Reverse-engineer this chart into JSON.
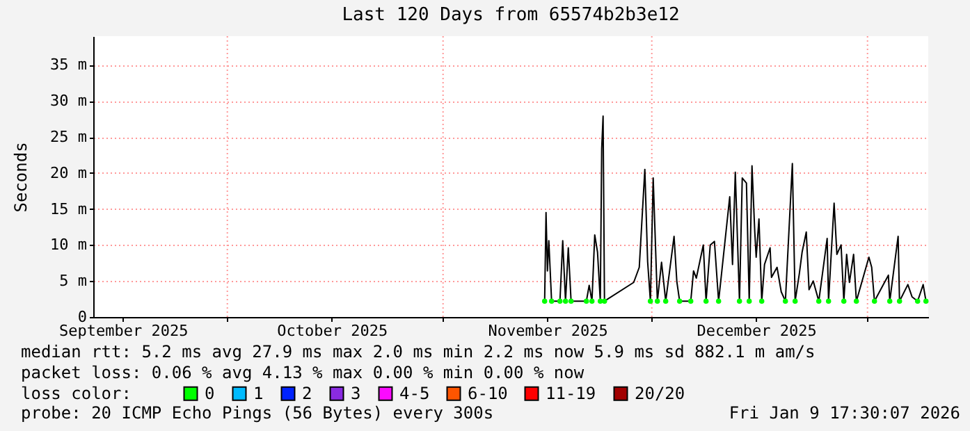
{
  "chart_data": {
    "type": "line",
    "title": "Last 120 Days from 65574b2b3e12",
    "ylabel": "Seconds",
    "xlim": [
      "2025-09-11T17:30",
      "2026-01-09T17:30"
    ],
    "xticks": [
      {
        "value": "2025-09-16",
        "label": "September 2025"
      },
      {
        "value": "2025-10-01",
        "label": null
      },
      {
        "value": "2025-10-16",
        "label": "October 2025"
      },
      {
        "value": "2025-11-01",
        "label": null
      },
      {
        "value": "2025-11-16",
        "label": "November 2025"
      },
      {
        "value": "2025-12-01",
        "label": null
      },
      {
        "value": "2025-12-16",
        "label": "December 2025"
      },
      {
        "value": "2026-01-01",
        "label": null
      }
    ],
    "ylim": [
      0,
      39
    ],
    "yticks": [
      0,
      {
        "value": 5,
        "label": "5 m"
      },
      {
        "value": 10,
        "label": "10 m"
      },
      {
        "value": 15,
        "label": "15 m"
      },
      {
        "value": 20,
        "label": "20 m"
      },
      {
        "value": 25,
        "label": "25 m"
      },
      {
        "value": 30,
        "label": "30 m"
      },
      {
        "value": 35,
        "label": "35 m"
      }
    ],
    "grid": true,
    "legend": "bottom",
    "legend_title": "loss color:",
    "line_style": "solid",
    "marker": "none",
    "x": [
      "2025-11-15T14:24",
      "2025-11-15T19:12",
      "2025-11-16T00:00",
      "2025-11-16T04:48",
      "2025-11-16T14:24",
      "2025-11-17T19:12",
      "2025-11-18T04:48",
      "2025-11-18T14:24",
      "2025-11-19T00:00",
      "2025-11-19T09:36",
      "2025-11-21T14:24",
      "2025-11-22T00:00",
      "2025-11-22T09:36",
      "2025-11-22T19:12",
      "2025-11-23T04:48",
      "2025-11-23T14:24",
      "2025-11-23T19:12",
      "2025-11-24T00:00",
      "2025-11-24T04:48",
      "2025-11-28T09:36",
      "2025-11-29T04:48",
      "2025-11-30T00:00",
      "2025-11-30T09:36",
      "2025-11-30T19:12",
      "2025-12-01T04:48",
      "2025-12-01T19:12",
      "2025-12-02T09:36",
      "2025-12-03T00:00",
      "2025-12-04T04:48",
      "2025-12-04T14:24",
      "2025-12-05T00:00",
      "2025-12-06T14:24",
      "2025-12-07T00:00",
      "2025-12-07T09:36",
      "2025-12-08T09:36",
      "2025-12-08T19:12",
      "2025-12-09T09:36",
      "2025-12-10T00:00",
      "2025-12-10T14:24",
      "2025-12-11T00:00",
      "2025-12-12T04:48",
      "2025-12-12T14:24",
      "2025-12-13T00:00",
      "2025-12-13T14:24",
      "2025-12-14T00:00",
      "2025-12-14T14:24",
      "2025-12-15T00:00",
      "2025-12-15T09:36",
      "2025-12-15T19:12",
      "2025-12-16T00:00",
      "2025-12-16T09:36",
      "2025-12-16T19:12",
      "2025-12-17T04:48",
      "2025-12-18T00:00",
      "2025-12-18T04:48",
      "2025-12-19T00:00",
      "2025-12-19T14:24",
      "2025-12-20T04:48",
      "2025-12-21T04:48",
      "2025-12-21T14:24",
      "2025-12-22T04:48",
      "2025-12-22T14:24",
      "2025-12-23T04:48",
      "2025-12-23T14:24",
      "2025-12-24T04:48",
      "2025-12-25T00:00",
      "2025-12-26T04:48",
      "2025-12-26T09:36",
      "2025-12-27T04:48",
      "2025-12-27T14:24",
      "2025-12-28T04:48",
      "2025-12-28T14:24",
      "2025-12-29T00:00",
      "2025-12-29T09:36",
      "2025-12-30T00:00",
      "2025-12-30T09:36",
      "2026-01-01T04:48",
      "2026-01-01T14:24",
      "2026-01-02T00:00",
      "2026-01-04T00:00",
      "2026-01-04T04:48",
      "2026-01-05T09:36",
      "2026-01-05T14:24",
      "2026-01-06T19:12",
      "2026-01-07T09:36",
      "2026-01-08T04:48",
      "2026-01-09T00:00",
      "2026-01-09T09:36"
    ],
    "series": [
      {
        "color": "#000000",
        "values": [
          2.2,
          14.5,
          6.4,
          10.6,
          2.2,
          2.2,
          10.6,
          2.2,
          9.6,
          2.2,
          2.2,
          4.4,
          2.2,
          11.4,
          9.0,
          2.2,
          23.4,
          27.9,
          2.2,
          4.8,
          6.9,
          20.5,
          7.7,
          2.2,
          19.3,
          2.2,
          7.6,
          2.2,
          11.2,
          4.9,
          2.2,
          2.2,
          6.4,
          5.4,
          10.0,
          2.2,
          10.0,
          10.5,
          2.2,
          5.8,
          16.7,
          7.3,
          20.1,
          2.2,
          19.3,
          18.6,
          2.2,
          21.0,
          11.8,
          8.3,
          13.6,
          2.2,
          7.3,
          9.6,
          5.5,
          6.9,
          3.5,
          2.2,
          21.3,
          2.2,
          6.0,
          9.0,
          11.8,
          3.8,
          5.0,
          2.2,
          10.9,
          2.2,
          15.8,
          8.7,
          10.0,
          2.2,
          8.7,
          4.8,
          8.7,
          2.2,
          8.3,
          6.9,
          2.2,
          5.8,
          2.2,
          11.2,
          2.2,
          4.5,
          2.8,
          2.2,
          4.5,
          2.2
        ]
      },
      {
        "name": "0",
        "color": "#00ff00",
        "type": "scatter",
        "marker": "circle",
        "values": [
          2.2,
          null,
          null,
          null,
          2.2,
          2.2,
          null,
          2.2,
          null,
          2.2,
          2.2,
          null,
          2.2,
          null,
          null,
          2.2,
          null,
          null,
          2.2,
          null,
          null,
          null,
          null,
          2.2,
          null,
          2.2,
          null,
          2.2,
          null,
          null,
          2.2,
          2.2,
          null,
          null,
          null,
          2.2,
          null,
          null,
          2.2,
          null,
          null,
          null,
          null,
          2.2,
          null,
          null,
          2.2,
          null,
          null,
          null,
          null,
          2.2,
          null,
          null,
          null,
          null,
          null,
          2.2,
          null,
          2.2,
          null,
          null,
          null,
          null,
          null,
          2.2,
          null,
          2.2,
          null,
          null,
          null,
          2.2,
          null,
          null,
          null,
          2.2,
          null,
          null,
          2.2,
          null,
          2.2,
          null,
          2.2,
          null,
          null,
          2.2,
          null,
          2.2
        ]
      },
      {
        "name": "1",
        "color": "#00bbff",
        "values": [
          null,
          null,
          null,
          null,
          null,
          null,
          null,
          null,
          null,
          null,
          null,
          null,
          null,
          null,
          null,
          null,
          null,
          null,
          null,
          null,
          null,
          null,
          null,
          null,
          null,
          null,
          null,
          null,
          null,
          null,
          null,
          null,
          null,
          null,
          null,
          null,
          null,
          null,
          null,
          null,
          null,
          null,
          null,
          null,
          null,
          null,
          null,
          null,
          null,
          null,
          null,
          null,
          null,
          null,
          null,
          null,
          null,
          null,
          null,
          null,
          null,
          null,
          null,
          null,
          null,
          null,
          null,
          null,
          null,
          null,
          null,
          null,
          null,
          null,
          null,
          null,
          null,
          null,
          null,
          null,
          null,
          null,
          null,
          null,
          null,
          null,
          null,
          null
        ]
      },
      {
        "name": "2",
        "color": "#0022ff",
        "values": [
          null,
          null,
          null,
          null,
          null,
          null,
          null,
          null,
          null,
          null,
          null,
          null,
          null,
          null,
          null,
          null,
          null,
          null,
          null,
          null,
          null,
          null,
          null,
          null,
          null,
          null,
          null,
          null,
          null,
          null,
          null,
          null,
          null,
          null,
          null,
          null,
          null,
          null,
          null,
          null,
          null,
          null,
          null,
          null,
          null,
          null,
          null,
          null,
          null,
          null,
          null,
          null,
          null,
          null,
          null,
          null,
          null,
          null,
          null,
          null,
          null,
          null,
          null,
          null,
          null,
          null,
          null,
          null,
          null,
          null,
          null,
          null,
          null,
          null,
          null,
          null,
          null,
          null,
          null,
          null,
          null,
          null,
          null,
          null,
          null,
          null,
          null,
          null
        ]
      },
      {
        "name": "3",
        "color": "#8a2be2",
        "values": [
          null,
          null,
          null,
          null,
          null,
          null,
          null,
          null,
          null,
          null,
          null,
          null,
          null,
          null,
          null,
          null,
          null,
          null,
          null,
          null,
          null,
          null,
          null,
          null,
          null,
          null,
          null,
          null,
          null,
          null,
          null,
          null,
          null,
          null,
          null,
          null,
          null,
          null,
          null,
          null,
          null,
          null,
          null,
          null,
          null,
          null,
          null,
          null,
          null,
          null,
          null,
          null,
          null,
          null,
          null,
          null,
          null,
          null,
          null,
          null,
          null,
          null,
          null,
          null,
          null,
          null,
          null,
          null,
          null,
          null,
          null,
          null,
          null,
          null,
          null,
          null,
          null,
          null,
          null,
          null,
          null,
          null,
          null,
          null,
          null,
          null,
          null,
          null
        ]
      },
      {
        "name": "4-5",
        "color": "#fa0bff",
        "values": [
          null,
          null,
          null,
          null,
          null,
          null,
          null,
          null,
          null,
          null,
          null,
          null,
          null,
          null,
          null,
          null,
          null,
          null,
          null,
          null,
          null,
          null,
          null,
          null,
          null,
          null,
          null,
          null,
          null,
          null,
          null,
          null,
          null,
          null,
          null,
          null,
          null,
          null,
          null,
          null,
          null,
          null,
          null,
          null,
          null,
          null,
          null,
          null,
          null,
          null,
          null,
          null,
          null,
          null,
          null,
          null,
          null,
          null,
          null,
          null,
          null,
          null,
          null,
          null,
          null,
          null,
          null,
          null,
          null,
          null,
          null,
          null,
          null,
          null,
          null,
          null,
          null,
          null,
          null,
          null,
          null,
          null,
          null,
          null,
          null,
          null,
          null,
          null
        ]
      },
      {
        "name": "6-10",
        "color": "#ff5500",
        "values": [
          null,
          null,
          null,
          null,
          null,
          null,
          null,
          null,
          null,
          null,
          null,
          null,
          null,
          null,
          null,
          null,
          null,
          null,
          null,
          null,
          null,
          null,
          null,
          null,
          null,
          null,
          null,
          null,
          null,
          null,
          null,
          null,
          null,
          null,
          null,
          null,
          null,
          null,
          null,
          null,
          null,
          null,
          null,
          null,
          null,
          null,
          null,
          null,
          null,
          null,
          null,
          null,
          null,
          null,
          null,
          null,
          null,
          null,
          null,
          null,
          null,
          null,
          null,
          null,
          null,
          null,
          null,
          null,
          null,
          null,
          null,
          null,
          null,
          null,
          null,
          null,
          null,
          null,
          null,
          null,
          null,
          null,
          null,
          null,
          null,
          null,
          null,
          null
        ]
      },
      {
        "name": "11-19",
        "color": "#ff0000",
        "values": [
          null,
          null,
          null,
          null,
          null,
          null,
          null,
          null,
          null,
          null,
          null,
          null,
          null,
          null,
          null,
          null,
          null,
          null,
          null,
          null,
          null,
          null,
          null,
          null,
          null,
          null,
          null,
          null,
          null,
          null,
          null,
          null,
          null,
          null,
          null,
          null,
          null,
          null,
          null,
          null,
          null,
          null,
          null,
          null,
          null,
          null,
          null,
          null,
          null,
          null,
          null,
          null,
          null,
          null,
          null,
          null,
          null,
          null,
          null,
          null,
          null,
          null,
          null,
          null,
          null,
          null,
          null,
          null,
          null,
          null,
          null,
          null,
          null,
          null,
          null,
          null,
          null,
          null,
          null,
          null,
          null,
          null,
          null,
          null,
          null,
          null,
          null,
          null
        ]
      },
      {
        "name": "20/20",
        "color": "#a10000",
        "values": [
          null,
          null,
          null,
          null,
          null,
          null,
          null,
          null,
          null,
          null,
          null,
          null,
          null,
          null,
          null,
          null,
          null,
          null,
          null,
          null,
          null,
          null,
          null,
          null,
          null,
          null,
          null,
          null,
          null,
          null,
          null,
          null,
          null,
          null,
          null,
          null,
          null,
          null,
          null,
          null,
          null,
          null,
          null,
          null,
          null,
          null,
          null,
          null,
          null,
          null,
          null,
          null,
          null,
          null,
          null,
          null,
          null,
          null,
          null,
          null,
          null,
          null,
          null,
          null,
          null,
          null,
          null,
          null,
          null,
          null,
          null,
          null,
          null,
          null,
          null,
          null,
          null,
          null,
          null,
          null,
          null,
          null,
          null,
          null,
          null,
          null,
          null,
          null
        ]
      }
    ],
    "annotations": [
      "median rtt:  5.2 ms avg  27.9 ms max  2.0 ms min  2.2 ms now  5.9 ms sd  882.1 m am/s",
      "packet loss: 0.06 % avg  4.13 % max  0.00 % min  0.00 % now",
      "probe:       20 ICMP Echo Pings (56 Bytes) every 300s",
      "Fri Jan  9 17:30:07 2026"
    ]
  }
}
